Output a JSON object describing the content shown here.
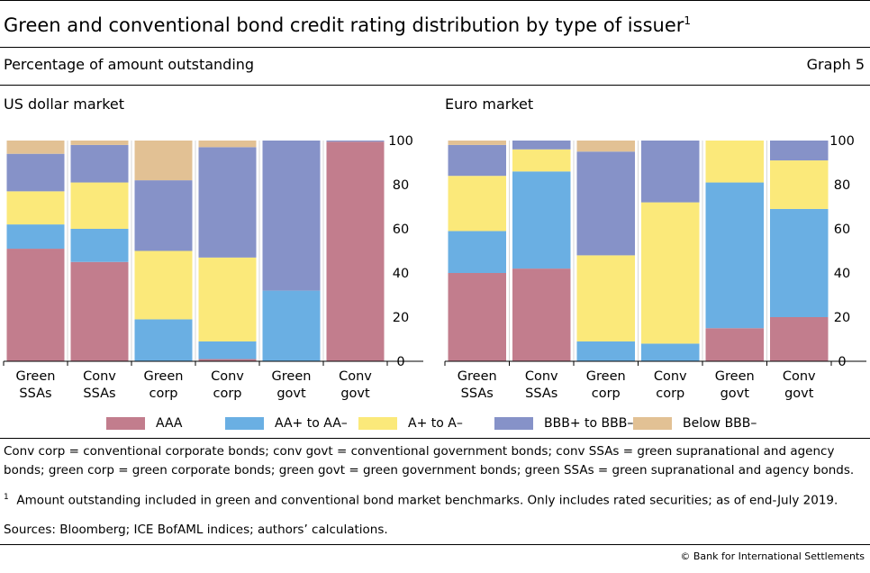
{
  "title": "Green and conventional bond credit rating distribution by type of issuer",
  "title_footnote_mark": "1",
  "subtitle": "Percentage of amount outstanding",
  "graph_number": "Graph 5",
  "colors": {
    "AAA": "#c27d8d",
    "AA+ to AA–": "#6aafe3",
    "A+ to A–": "#fbe97a",
    "BBB+ to BBB–": "#8692c8",
    "Below BBB–": "#e2c194"
  },
  "legend": [
    "AAA",
    "AA+ to AA–",
    "A+ to A–",
    "BBB+ to BBB–",
    "Below BBB–"
  ],
  "chart_data": [
    {
      "type": "bar",
      "stacked": true,
      "title": "US dollar market",
      "categories": [
        [
          "Green",
          "SSAs"
        ],
        [
          "Conv",
          "SSAs"
        ],
        [
          "Green",
          "corp"
        ],
        [
          "Conv",
          "corp"
        ],
        [
          "Green",
          "govt"
        ],
        [
          "Conv",
          "govt"
        ]
      ],
      "series": [
        {
          "name": "AAA",
          "values": [
            51,
            45,
            0,
            1,
            0,
            99.5
          ]
        },
        {
          "name": "AA+ to AA–",
          "values": [
            11,
            15,
            19,
            8,
            32,
            0
          ]
        },
        {
          "name": "A+ to A–",
          "values": [
            15,
            21,
            31,
            38,
            0,
            0
          ]
        },
        {
          "name": "BBB+ to BBB–",
          "values": [
            17,
            17,
            32,
            50,
            68,
            0.5
          ]
        },
        {
          "name": "Below BBB–",
          "values": [
            6,
            2,
            18,
            3,
            0,
            0
          ]
        }
      ],
      "ylim": [
        0,
        100
      ],
      "yticks": [
        0,
        20,
        40,
        60,
        80,
        100
      ],
      "y_axis_side": "right",
      "grid": false
    },
    {
      "type": "bar",
      "stacked": true,
      "title": "Euro market",
      "categories": [
        [
          "Green",
          "SSAs"
        ],
        [
          "Conv",
          "SSAs"
        ],
        [
          "Green",
          "corp"
        ],
        [
          "Conv",
          "corp"
        ],
        [
          "Green",
          "govt"
        ],
        [
          "Conv",
          "govt"
        ]
      ],
      "series": [
        {
          "name": "AAA",
          "values": [
            40,
            42,
            0,
            0,
            15,
            20
          ]
        },
        {
          "name": "AA+ to AA–",
          "values": [
            19,
            44,
            9,
            8,
            66,
            49
          ]
        },
        {
          "name": "A+ to A–",
          "values": [
            25,
            10,
            39,
            64,
            19,
            22
          ]
        },
        {
          "name": "BBB+ to BBB–",
          "values": [
            14,
            4,
            47,
            28,
            0,
            9
          ]
        },
        {
          "name": "Below BBB–",
          "values": [
            2,
            0,
            5,
            0,
            0,
            0
          ]
        }
      ],
      "ylim": [
        0,
        100
      ],
      "yticks": [
        0,
        20,
        40,
        60,
        80,
        100
      ],
      "y_axis_side": "right",
      "grid": false
    }
  ],
  "footnotes": {
    "abbreviations": "Conv corp = conventional corporate bonds; conv govt = conventional government bonds; conv SSAs = green supranational and agency bonds; green corp = green corporate bonds; green govt = green government bonds; green SSAs = green supranational and agency bonds.",
    "note_mark": "1",
    "note": "Amount outstanding included in green and conventional bond market benchmarks. Only includes rated securities; as of end-July 2019.",
    "sources": "Sources: Bloomberg; ICE BofAML indices; authors’ calculations."
  },
  "copyright": "© Bank for International Settlements"
}
